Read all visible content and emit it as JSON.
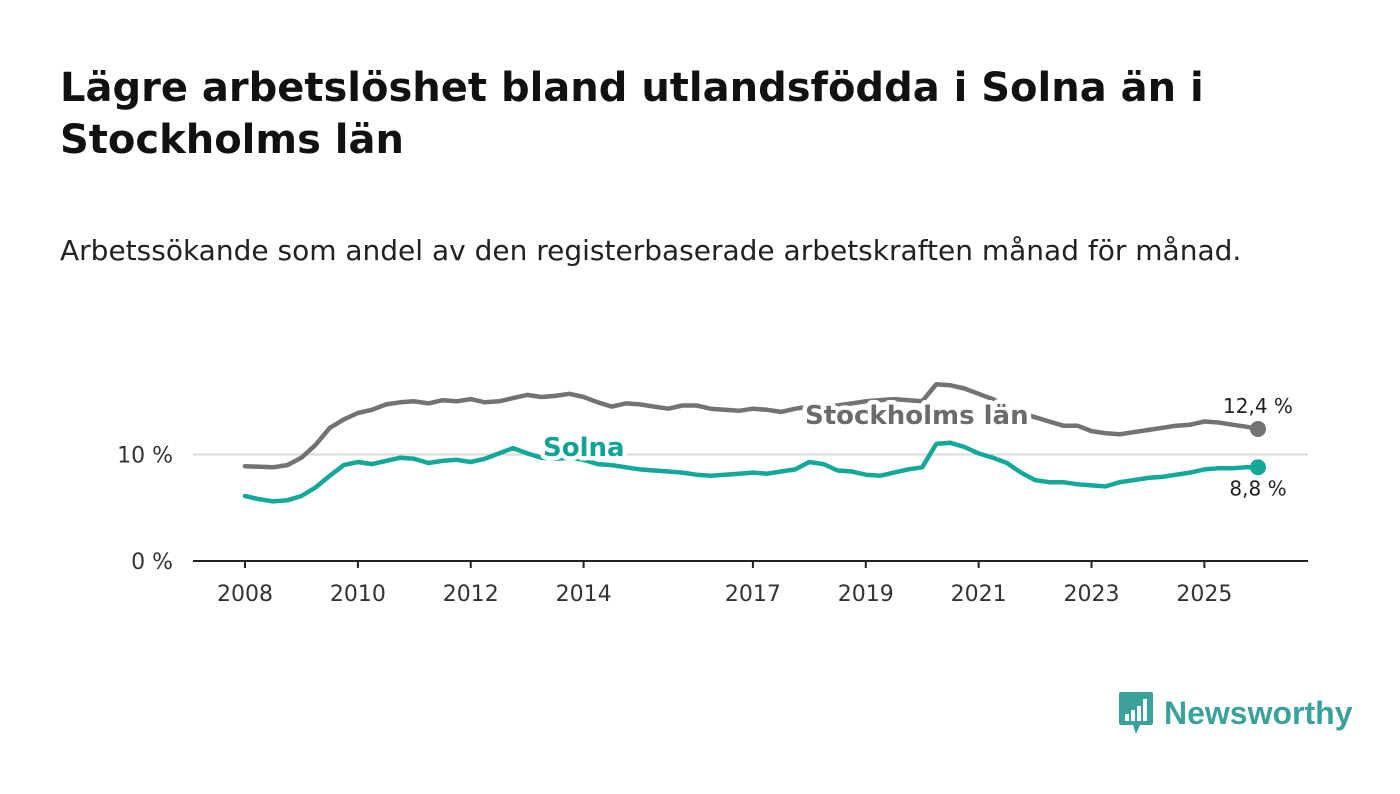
{
  "title": "Lägre arbetslöshet bland utlandsfödda i Solna än i Stockholms län",
  "subtitle": "Arbetssökande som andel av den registerbaserade arbetskraften månad för månad.",
  "brand": {
    "name": "Newsworthy",
    "icon": "newsworthy-logo-icon",
    "color": "#3aa29a"
  },
  "chart_data": {
    "type": "line",
    "title": "Lägre arbetslöshet bland utlandsfödda i Solna än i Stockholms län",
    "subtitle": "Arbetssökande som andel av den registerbaserade arbetskraften månad för månad.",
    "xlabel": "",
    "ylabel": "",
    "xlim": [
      2008.0,
      2025.95
    ],
    "ylim": [
      0,
      20
    ],
    "y_ticks": [
      {
        "value": 0,
        "label": "0 %"
      },
      {
        "value": 10,
        "label": "10 %"
      }
    ],
    "x_ticks": [
      {
        "value": 2008,
        "label": "2008"
      },
      {
        "value": 2010,
        "label": "2010"
      },
      {
        "value": 2012,
        "label": "2012"
      },
      {
        "value": 2014,
        "label": "2014"
      },
      {
        "value": 2017,
        "label": "2017"
      },
      {
        "value": 2019,
        "label": "2019"
      },
      {
        "value": 2021,
        "label": "2021"
      },
      {
        "value": 2023,
        "label": "2023"
      },
      {
        "value": 2025,
        "label": "2025"
      }
    ],
    "reference_line": 10,
    "series": [
      {
        "name": "Stockholms län",
        "color": "#737373",
        "label_color": "#6b6b6b",
        "end_label": "12,4 %",
        "x": [
          2008.0,
          2008.5,
          2008.75,
          2009.0,
          2009.25,
          2009.5,
          2009.75,
          2010.0,
          2010.25,
          2010.5,
          2010.75,
          2011.0,
          2011.25,
          2011.5,
          2011.75,
          2012.0,
          2012.25,
          2012.5,
          2012.75,
          2013.0,
          2013.25,
          2013.5,
          2013.75,
          2014.0,
          2014.25,
          2014.5,
          2014.75,
          2015.0,
          2015.25,
          2015.5,
          2015.75,
          2016.0,
          2016.25,
          2016.5,
          2016.75,
          2017.0,
          2017.25,
          2017.5,
          2017.75,
          2018.0,
          2018.5,
          2019.0,
          2019.5,
          2020.0,
          2020.25,
          2020.5,
          2020.75,
          2021.0,
          2021.25,
          2021.5,
          2021.75,
          2022.0,
          2022.25,
          2022.5,
          2022.75,
          2023.0,
          2023.25,
          2023.5,
          2023.75,
          2024.0,
          2024.25,
          2024.5,
          2024.75,
          2025.0,
          2025.25,
          2025.5,
          2025.75,
          2025.95
        ],
        "values": [
          8.9,
          8.8,
          9.0,
          9.7,
          10.9,
          12.5,
          13.3,
          13.9,
          14.2,
          14.7,
          14.9,
          15.0,
          14.8,
          15.1,
          15.0,
          15.2,
          14.9,
          15.0,
          15.3,
          15.6,
          15.4,
          15.5,
          15.7,
          15.4,
          14.9,
          14.5,
          14.8,
          14.7,
          14.5,
          14.3,
          14.6,
          14.6,
          14.3,
          14.2,
          14.1,
          14.3,
          14.2,
          14.0,
          14.3,
          14.5,
          14.6,
          15.0,
          15.2,
          15.0,
          16.6,
          16.5,
          16.2,
          15.7,
          15.2,
          14.5,
          13.9,
          13.5,
          13.1,
          12.7,
          12.7,
          12.2,
          12.0,
          11.9,
          12.1,
          12.3,
          12.5,
          12.7,
          12.8,
          13.1,
          13.0,
          12.8,
          12.6,
          12.4
        ]
      },
      {
        "name": "Solna",
        "color": "#14a89b",
        "label_color": "#13a396",
        "end_label": "8,8 %",
        "x": [
          2008.0,
          2008.25,
          2008.5,
          2008.75,
          2009.0,
          2009.25,
          2009.5,
          2009.75,
          2010.0,
          2010.25,
          2010.5,
          2010.75,
          2011.0,
          2011.25,
          2011.5,
          2011.75,
          2012.0,
          2012.25,
          2012.5,
          2012.75,
          2013.0,
          2013.25,
          2013.5,
          2013.75,
          2014.0,
          2014.25,
          2014.5,
          2014.75,
          2015.0,
          2015.25,
          2015.5,
          2015.75,
          2016.0,
          2016.25,
          2016.5,
          2016.75,
          2017.0,
          2017.25,
          2017.5,
          2017.75,
          2018.0,
          2018.25,
          2018.5,
          2018.75,
          2019.0,
          2019.25,
          2019.5,
          2019.75,
          2020.0,
          2020.25,
          2020.5,
          2020.75,
          2021.0,
          2021.25,
          2021.5,
          2021.75,
          2022.0,
          2022.25,
          2022.5,
          2022.75,
          2023.0,
          2023.25,
          2023.5,
          2023.75,
          2024.0,
          2024.25,
          2024.5,
          2024.75,
          2025.0,
          2025.25,
          2025.5,
          2025.75,
          2025.95
        ],
        "values": [
          6.1,
          5.8,
          5.6,
          5.7,
          6.1,
          6.9,
          8.0,
          9.0,
          9.3,
          9.1,
          9.4,
          9.7,
          9.6,
          9.2,
          9.4,
          9.5,
          9.3,
          9.6,
          10.1,
          10.6,
          10.1,
          9.7,
          9.6,
          9.7,
          9.5,
          9.1,
          9.0,
          8.8,
          8.6,
          8.5,
          8.4,
          8.3,
          8.1,
          8.0,
          8.1,
          8.2,
          8.3,
          8.2,
          8.4,
          8.6,
          9.3,
          9.1,
          8.5,
          8.4,
          8.1,
          8.0,
          8.3,
          8.6,
          8.8,
          11.0,
          11.1,
          10.7,
          10.1,
          9.7,
          9.2,
          8.3,
          7.6,
          7.4,
          7.4,
          7.2,
          7.1,
          7.0,
          7.4,
          7.6,
          7.8,
          7.9,
          8.1,
          8.3,
          8.6,
          8.7,
          8.7,
          8.8,
          8.8
        ]
      }
    ]
  }
}
